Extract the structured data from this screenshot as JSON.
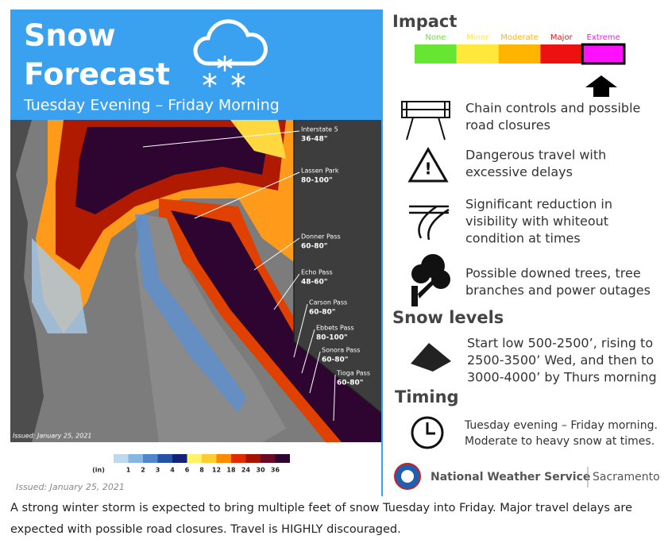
{
  "header": {
    "title_line1": "Snow",
    "title_line2": "Forecast",
    "subtitle": "Tuesday Evening – Friday Morning"
  },
  "map": {
    "labels": [
      {
        "name": "Interstate 5",
        "amount": "36-48\""
      },
      {
        "name": "Lassen Park",
        "amount": "80-100\""
      },
      {
        "name": "Donner Pass",
        "amount": "60-80\""
      },
      {
        "name": "Echo Pass",
        "amount": "48-60\""
      },
      {
        "name": "Carson Pass",
        "amount": "60-80\""
      },
      {
        "name": "Ebbets Pass",
        "amount": "80-100\""
      },
      {
        "name": "Sonora Pass",
        "amount": "60-80\""
      },
      {
        "name": "Tioga Pass",
        "amount": "60-80\""
      }
    ],
    "issued": "Issued: January 25, 2021"
  },
  "colorbar": {
    "unit": "(in)",
    "ticks": [
      "1",
      "2",
      "3",
      "4",
      "6",
      "8",
      "12",
      "18",
      "24",
      "30",
      "36"
    ],
    "colors": [
      "#bcd9ef",
      "#86b6e2",
      "#4f86cc",
      "#2552a6",
      "#13237a",
      "#fff36a",
      "#ffcb33",
      "#ff8a00",
      "#e02a00",
      "#a51200",
      "#6a0a24",
      "#2e0530"
    ]
  },
  "issued": "Issued: January 25, 2021",
  "impact": {
    "title": "Impact",
    "levels": [
      {
        "label": "None",
        "color": "#66e633"
      },
      {
        "label": "Minor",
        "color": "#ffe83a"
      },
      {
        "label": "Moderate",
        "color": "#ffb400"
      },
      {
        "label": "Major",
        "color": "#ee1111"
      },
      {
        "label": "Extreme",
        "color": "#ff10ff"
      }
    ]
  },
  "hazards": [
    {
      "lines": [
        "Chain controls and possible",
        "road closures"
      ]
    },
    {
      "lines": [
        "Dangerous travel with",
        "excessive delays"
      ]
    },
    {
      "lines": [
        "Significant reduction in",
        "visibility with whiteout",
        "condition at times"
      ]
    },
    {
      "lines": [
        "Possible downed trees, tree",
        "branches and power outages"
      ]
    }
  ],
  "snow_levels": {
    "title": "Snow levels",
    "lines": [
      "Start low 500-2500’, rising to",
      "2500-3500’ Wed, and then to",
      "3000-4000’ by Thurs morning"
    ]
  },
  "timing": {
    "title": "Timing",
    "lines": [
      "Tuesday evening – Friday morning.",
      "Moderate to heavy snow at times."
    ]
  },
  "footer": {
    "agency": "National Weather Service",
    "office": "Sacramento"
  },
  "caption": {
    "lines": [
      "A strong winter storm is expected to bring multiple feet of snow Tuesday into Friday. Major travel delays are",
      "expected with possible road closures. Travel is HIGHLY discouraged."
    ]
  }
}
